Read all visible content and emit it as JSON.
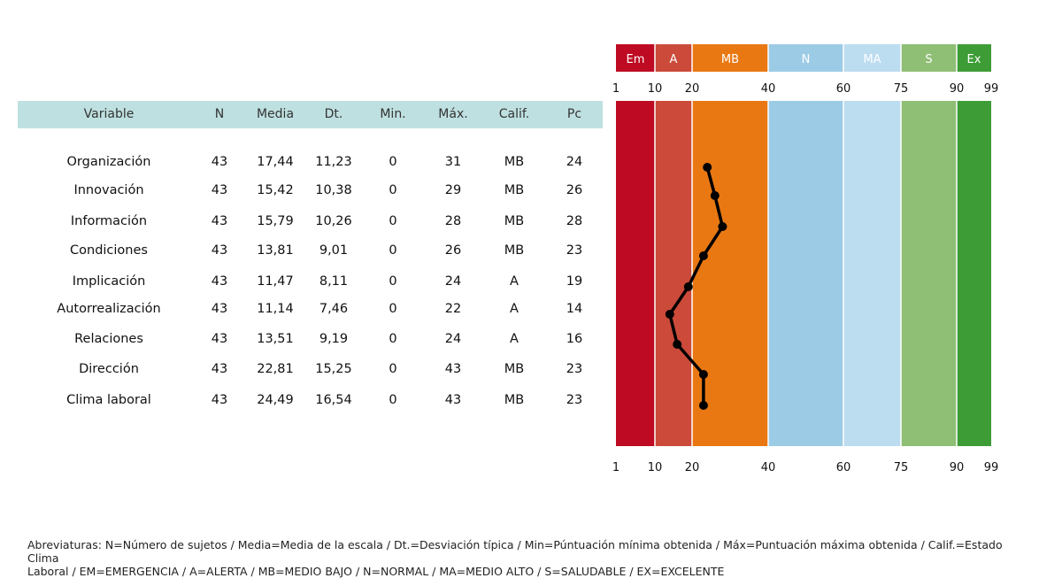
{
  "table": {
    "headers": [
      "Variable",
      "N",
      "Media",
      "Dt.",
      "Min.",
      "Máx.",
      "Calif.",
      "Pc"
    ],
    "rows": [
      [
        "Organización",
        "43",
        "17,44",
        "11,23",
        "0",
        "31",
        "MB",
        "24"
      ],
      [
        "Innovación",
        "43",
        "15,42",
        "10,38",
        "0",
        "29",
        "MB",
        "26"
      ],
      [
        "Información",
        "43",
        "15,79",
        "10,26",
        "0",
        "28",
        "MB",
        "28"
      ],
      [
        "Condiciones",
        "43",
        "13,81",
        "9,01",
        "0",
        "26",
        "MB",
        "23"
      ],
      [
        "Implicación",
        "43",
        "11,47",
        "8,11",
        "0",
        "24",
        "A",
        "19"
      ],
      [
        "Autorrealización",
        "43",
        "11,14",
        "7,46",
        "0",
        "22",
        "A",
        "14"
      ],
      [
        "Relaciones",
        "43",
        "13,51",
        "9,19",
        "0",
        "24",
        "A",
        "16"
      ],
      [
        "Dirección",
        "43",
        "22,81",
        "15,25",
        "0",
        "43",
        "MB",
        "23"
      ],
      [
        "Clima laboral",
        "43",
        "24,49",
        "16,54",
        "0",
        "43",
        "MB",
        "23"
      ]
    ]
  },
  "chart_data": {
    "type": "line",
    "title": "",
    "xlabel": "",
    "ylabel": "",
    "x_ticks": [
      "1",
      "10",
      "20",
      "40",
      "60",
      "75",
      "90",
      "99"
    ],
    "bands": [
      {
        "label": "Em",
        "from": 1,
        "to": 10,
        "color": "#be0a22"
      },
      {
        "label": "A",
        "from": 10,
        "to": 20,
        "color": "#cb4a3a"
      },
      {
        "label": "MB",
        "from": 20,
        "to": 40,
        "color": "#e97812"
      },
      {
        "label": "N",
        "from": 40,
        "to": 60,
        "color": "#9ccbe6"
      },
      {
        "label": "MA",
        "from": 60,
        "to": 75,
        "color": "#bcdcf0"
      },
      {
        "label": "S",
        "from": 75,
        "to": 90,
        "color": "#8fbe75"
      },
      {
        "label": "Ex",
        "from": 90,
        "to": 99,
        "color": "#3d9c36"
      }
    ],
    "categories": [
      "Organización",
      "Innovación",
      "Información",
      "Condiciones",
      "Implicación",
      "Autorrealización",
      "Relaciones",
      "Dirección",
      "Clima laboral"
    ],
    "series": [
      {
        "values": [
          24,
          26,
          28,
          23,
          19,
          14,
          16,
          23,
          23
        ],
        "color": "#000000"
      }
    ],
    "grid": false
  },
  "footer": {
    "line1": "Abreviaturas: N=Número de sujetos / Media=Media de la escala / Dt.=Desviación típica / Min=Púntuación mínima obtenida / Máx=Puntuación máxima obtenida / Calif.=Estado Clima",
    "line2": "Laboral / EM=EMERGENCIA / A=ALERTA / MB=MEDIO BAJO / N=NORMAL / MA=MEDIO ALTO / S=SALUDABLE / EX=EXCELENTE"
  }
}
